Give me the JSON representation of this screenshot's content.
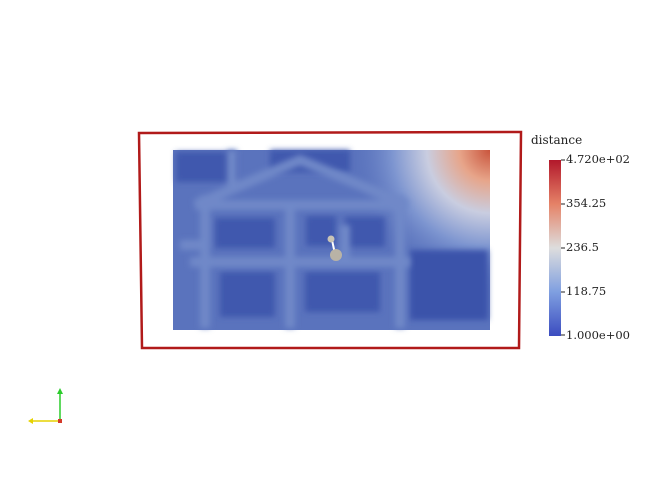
{
  "legend": {
    "title": "distance",
    "ticks": [
      "4.720e+02",
      "354.25",
      "236.5",
      "118.75",
      "1.000e+00"
    ],
    "colors": {
      "high": "#b2182b",
      "mid": "#dddddd",
      "low": "#3b4cc0"
    }
  },
  "scene": {
    "outline_color": "#b11a1a",
    "field_base_color": "#5a73bd",
    "structure_color": "#6f8ac6",
    "probe_color": "#b9b3a6"
  },
  "axes": {
    "x_color": "#e6d200",
    "y_color": "#2bcc2b",
    "z_color": "#d43a2a"
  }
}
